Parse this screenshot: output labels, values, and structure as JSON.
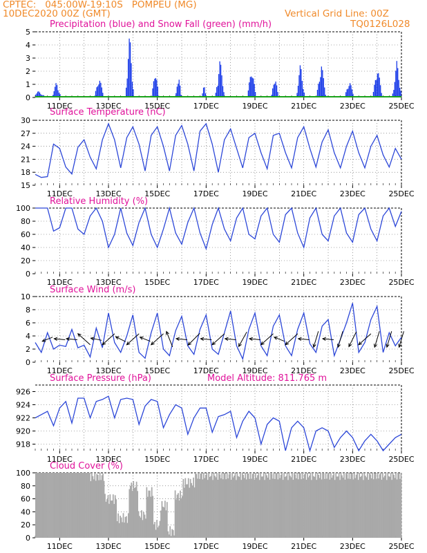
{
  "header": {
    "line1": "CPTEC:   045:00W-19:10S   POMPEU (MG)",
    "line2": "10DEC2020 00Z (GMT)",
    "grid_note": "Vertical Grid Line: 00Z",
    "code": "TQ0126L028"
  },
  "panels": {
    "precip_title": "Precipitation (blue) and Snow Fall (green) (mm/h)",
    "temp_title": "Surface Temperature (nC)",
    "rh_title": "Relative Humidity (%)",
    "wind_title": "Surface Wind (m/s)",
    "pressure_title": "Surface Pressure (hPa)",
    "altitude_label": "Model Altitude: 811.765 m",
    "cloud_title": "Cloud Cover (%)"
  },
  "colors": {
    "header": "#f08a2a",
    "title": "#e0129a",
    "line": "#2b46d8",
    "bar": "#1537e8",
    "snow": "#19a319",
    "cloud": "#a9a9a9"
  },
  "chart_data": [
    {
      "type": "bar",
      "title": "Precipitation (blue) and Snow Fall (green) (mm/h)",
      "x_ticks": [
        "11DEC",
        "13DEC",
        "15DEC",
        "17DEC",
        "19DEC",
        "21DEC",
        "23DEC",
        "25DEC"
      ],
      "xlim_days": [
        10,
        25
      ],
      "ylim": [
        0,
        5
      ],
      "y_ticks": [
        0,
        1,
        2,
        3,
        4,
        5
      ],
      "precip_events": [
        {
          "day": 10.1,
          "peak": 0.5,
          "width": 0.35
        },
        {
          "day": 10.85,
          "peak": 1.2,
          "width": 0.2
        },
        {
          "day": 12.6,
          "peak": 1.7,
          "width": 0.2
        },
        {
          "day": 13.85,
          "peak": 5.0,
          "width": 0.18
        },
        {
          "day": 14.9,
          "peak": 2.5,
          "width": 0.15
        },
        {
          "day": 15.85,
          "peak": 2.1,
          "width": 0.12
        },
        {
          "day": 16.9,
          "peak": 1.0,
          "width": 0.1
        },
        {
          "day": 17.55,
          "peak": 3.0,
          "width": 0.2
        },
        {
          "day": 18.85,
          "peak": 2.6,
          "width": 0.18
        },
        {
          "day": 19.8,
          "peak": 1.9,
          "width": 0.15
        },
        {
          "day": 20.85,
          "peak": 2.7,
          "width": 0.18
        },
        {
          "day": 21.7,
          "peak": 2.8,
          "width": 0.2
        },
        {
          "day": 22.85,
          "peak": 1.4,
          "width": 0.2
        },
        {
          "day": 24.0,
          "peak": 2.6,
          "width": 0.2
        },
        {
          "day": 24.8,
          "peak": 2.9,
          "width": 0.2
        }
      ],
      "snow": 0
    },
    {
      "type": "line",
      "title": "Surface Temperature (nC)",
      "ylim": [
        15,
        30
      ],
      "y_ticks": [
        15,
        18,
        21,
        24,
        27,
        30
      ],
      "x_days": [
        10.0,
        10.25,
        10.5,
        10.75,
        11.0,
        11.25,
        11.5,
        11.75,
        12.0,
        12.25,
        12.5,
        12.75,
        13.0,
        13.25,
        13.5,
        13.75,
        14.0,
        14.25,
        14.5,
        14.75,
        15.0,
        15.25,
        15.5,
        15.75,
        16.0,
        16.25,
        16.5,
        16.75,
        17.0,
        17.25,
        17.5,
        17.75,
        18.0,
        18.25,
        18.5,
        18.75,
        19.0,
        19.25,
        19.5,
        19.75,
        20.0,
        20.25,
        20.5,
        20.75,
        21.0,
        21.25,
        21.5,
        21.75,
        22.0,
        22.25,
        22.5,
        22.75,
        23.0,
        23.25,
        23.5,
        23.75,
        24.0,
        24.25,
        24.5,
        24.75,
        25.0
      ],
      "values": [
        17.5,
        16.8,
        17.0,
        24.5,
        23.5,
        19.2,
        17.6,
        23.8,
        25.5,
        21.5,
        18.8,
        25.5,
        29.2,
        25.5,
        19.0,
        26.0,
        28.5,
        24.5,
        18.3,
        26.5,
        28.5,
        24.0,
        18.3,
        26.5,
        28.8,
        24.5,
        18.3,
        27.5,
        29.2,
        24.5,
        18.0,
        25.5,
        28.0,
        23.5,
        19.0,
        26.0,
        27.0,
        22.5,
        18.8,
        26.5,
        27.0,
        22.5,
        19.0,
        26.0,
        28.5,
        23.5,
        19.2,
        25.0,
        27.8,
        22.5,
        19.0,
        24.0,
        27.5,
        22.5,
        19.0,
        24.0,
        26.5,
        22.0,
        19.2,
        23.5,
        21.0
      ]
    },
    {
      "type": "line",
      "title": "Relative Humidity (%)",
      "ylim": [
        0,
        100
      ],
      "y_ticks": [
        0,
        20,
        40,
        60,
        80,
        100
      ],
      "x_days": [
        10.0,
        10.25,
        10.5,
        10.75,
        11.0,
        11.25,
        11.5,
        11.75,
        12.0,
        12.25,
        12.5,
        12.75,
        13.0,
        13.25,
        13.5,
        13.75,
        14.0,
        14.25,
        14.5,
        14.75,
        15.0,
        15.25,
        15.5,
        15.75,
        16.0,
        16.25,
        16.5,
        16.75,
        17.0,
        17.25,
        17.5,
        17.75,
        18.0,
        18.25,
        18.5,
        18.75,
        19.0,
        19.25,
        19.5,
        19.75,
        20.0,
        20.25,
        20.5,
        20.75,
        21.0,
        21.25,
        21.5,
        21.75,
        22.0,
        22.25,
        22.5,
        22.75,
        23.0,
        23.25,
        23.5,
        23.75,
        24.0,
        24.25,
        24.5,
        24.75,
        25.0
      ],
      "values": [
        100,
        100,
        100,
        65,
        70,
        100,
        100,
        68,
        60,
        88,
        100,
        80,
        40,
        60,
        100,
        62,
        43,
        78,
        100,
        60,
        40,
        68,
        100,
        62,
        45,
        78,
        100,
        62,
        38,
        75,
        100,
        68,
        50,
        85,
        100,
        60,
        53,
        88,
        100,
        60,
        48,
        90,
        100,
        62,
        40,
        85,
        100,
        60,
        50,
        88,
        100,
        62,
        48,
        90,
        100,
        68,
        50,
        88,
        100,
        72,
        95
      ]
    },
    {
      "type": "line",
      "title": "Surface Wind (m/s)",
      "ylim": [
        0,
        10
      ],
      "y_ticks": [
        0,
        2,
        4,
        6,
        8,
        10
      ],
      "x_days": [
        10.0,
        10.25,
        10.5,
        10.75,
        11.0,
        11.25,
        11.5,
        11.75,
        12.0,
        12.25,
        12.5,
        12.75,
        13.0,
        13.25,
        13.5,
        13.75,
        14.0,
        14.25,
        14.5,
        14.75,
        15.0,
        15.25,
        15.5,
        15.75,
        16.0,
        16.25,
        16.5,
        16.75,
        17.0,
        17.25,
        17.5,
        17.75,
        18.0,
        18.25,
        18.5,
        18.75,
        19.0,
        19.25,
        19.5,
        19.75,
        20.0,
        20.25,
        20.5,
        20.75,
        21.0,
        21.25,
        21.5,
        21.75,
        22.0,
        22.25,
        22.5,
        22.75,
        23.0,
        23.25,
        23.5,
        23.75,
        24.0,
        24.25,
        24.5,
        24.75,
        25.0
      ],
      "values": [
        3.0,
        1.5,
        4.5,
        2.0,
        2.6,
        2.4,
        5.0,
        2.2,
        2.6,
        0.8,
        5.2,
        2.2,
        7.5,
        3.0,
        1.5,
        4.0,
        7.2,
        1.5,
        0.6,
        4.5,
        7.5,
        2.0,
        1.0,
        4.8,
        7.0,
        2.5,
        1.2,
        5.0,
        7.2,
        2.0,
        1.2,
        4.5,
        7.8,
        2.5,
        0.5,
        5.0,
        7.5,
        2.5,
        1.0,
        5.5,
        7.2,
        2.5,
        1.0,
        5.0,
        7.5,
        2.8,
        1.5,
        5.5,
        6.5,
        1.0,
        3.5,
        6.0,
        9.0,
        1.5,
        3.0,
        6.5,
        8.5,
        1.5,
        4.5,
        2.5,
        3.8
      ],
      "arrows": [
        {
          "day": 10.5,
          "u": -1.0,
          "v": -0.4
        },
        {
          "day": 11.0,
          "u": -1.0,
          "v": 0.1
        },
        {
          "day": 11.5,
          "u": -1.0,
          "v": 0.1
        },
        {
          "day": 12.0,
          "u": -1.0,
          "v": 0.9
        },
        {
          "day": 12.5,
          "u": -1.0,
          "v": 0.2
        },
        {
          "day": 13.0,
          "u": -1.0,
          "v": -0.9
        },
        {
          "day": 13.5,
          "u": -1.0,
          "v": 0.5
        },
        {
          "day": 14.0,
          "u": -1.0,
          "v": -0.9
        },
        {
          "day": 14.5,
          "u": -1.0,
          "v": 0.4
        },
        {
          "day": 15.0,
          "u": -1.0,
          "v": -0.9
        },
        {
          "day": 15.5,
          "u": -0.4,
          "v": 1.0
        },
        {
          "day": 16.0,
          "u": -1.0,
          "v": 0.1
        },
        {
          "day": 16.5,
          "u": -1.0,
          "v": -1.0
        },
        {
          "day": 17.0,
          "u": -1.0,
          "v": 0.1
        },
        {
          "day": 17.5,
          "u": -1.0,
          "v": -0.9
        },
        {
          "day": 18.0,
          "u": -1.0,
          "v": 0.1
        },
        {
          "day": 18.5,
          "u": -0.5,
          "v": -0.9
        },
        {
          "day": 19.0,
          "u": -1.0,
          "v": 0.1
        },
        {
          "day": 19.5,
          "u": -1.0,
          "v": -0.9
        },
        {
          "day": 20.0,
          "u": -1.0,
          "v": 0.4
        },
        {
          "day": 20.5,
          "u": -1.0,
          "v": -0.9
        },
        {
          "day": 21.0,
          "u": -1.0,
          "v": 0.1
        },
        {
          "day": 21.5,
          "u": -0.3,
          "v": -1.0
        },
        {
          "day": 22.0,
          "u": -1.0,
          "v": 0.1
        },
        {
          "day": 22.5,
          "u": -0.3,
          "v": -1.0
        },
        {
          "day": 23.0,
          "u": -0.5,
          "v": -1.0
        },
        {
          "day": 23.5,
          "u": -1.0,
          "v": -0.9
        },
        {
          "day": 24.0,
          "u": -0.3,
          "v": -1.0
        },
        {
          "day": 24.5,
          "u": -0.3,
          "v": -1.0
        },
        {
          "day": 25.0,
          "u": -0.3,
          "v": -1.0
        }
      ]
    },
    {
      "type": "line",
      "title": "Surface Pressure (hPa)",
      "ylim": [
        917,
        927
      ],
      "y_ticks": [
        918,
        920,
        922,
        924,
        926
      ],
      "x_days": [
        10.0,
        10.25,
        10.5,
        10.75,
        11.0,
        11.25,
        11.5,
        11.75,
        12.0,
        12.25,
        12.5,
        12.75,
        13.0,
        13.25,
        13.5,
        13.75,
        14.0,
        14.25,
        14.5,
        14.75,
        15.0,
        15.25,
        15.5,
        15.75,
        16.0,
        16.25,
        16.5,
        16.75,
        17.0,
        17.25,
        17.5,
        17.75,
        18.0,
        18.25,
        18.5,
        18.75,
        19.0,
        19.25,
        19.5,
        19.75,
        20.0,
        20.25,
        20.5,
        20.75,
        21.0,
        21.25,
        21.5,
        21.75,
        22.0,
        22.25,
        22.5,
        22.75,
        23.0,
        23.25,
        23.5,
        23.75,
        24.0,
        24.25,
        24.5,
        24.75,
        25.0
      ],
      "values": [
        922.0,
        922.5,
        923.0,
        920.8,
        923.5,
        924.5,
        921.2,
        925.0,
        925.0,
        922.0,
        924.5,
        924.8,
        925.3,
        922.0,
        924.8,
        925.0,
        924.8,
        921.0,
        923.8,
        924.8,
        924.5,
        920.5,
        922.5,
        924.0,
        923.5,
        919.5,
        922.0,
        923.5,
        923.5,
        919.8,
        922.2,
        922.5,
        923.0,
        919.0,
        921.5,
        923.0,
        922.0,
        918.0,
        921.0,
        922.0,
        921.5,
        917.0,
        920.5,
        921.5,
        920.5,
        917.0,
        920.0,
        920.5,
        920.0,
        917.5,
        919.0,
        920.0,
        919.0,
        917.0,
        918.5,
        919.5,
        918.5,
        917.0,
        918.0,
        919.0,
        919.5
      ]
    },
    {
      "type": "bar",
      "title": "Cloud Cover (%)",
      "ylim": [
        0,
        100
      ],
      "y_ticks": [
        0,
        20,
        40,
        60,
        80,
        100
      ],
      "cloud_segments": [
        {
          "from": 10.0,
          "to": 12.2,
          "value": 100
        },
        {
          "from": 12.2,
          "to": 12.8,
          "value": 95
        },
        {
          "from": 12.8,
          "to": 13.3,
          "value": 60
        },
        {
          "from": 13.3,
          "to": 13.8,
          "value": 30
        },
        {
          "from": 13.8,
          "to": 14.2,
          "value": 80
        },
        {
          "from": 14.2,
          "to": 14.5,
          "value": 35
        },
        {
          "from": 14.5,
          "to": 14.8,
          "value": 70
        },
        {
          "from": 14.8,
          "to": 15.1,
          "value": 20
        },
        {
          "from": 15.1,
          "to": 15.4,
          "value": 50
        },
        {
          "from": 15.4,
          "to": 15.7,
          "value": 10
        },
        {
          "from": 15.7,
          "to": 16.0,
          "value": 65
        },
        {
          "from": 16.0,
          "to": 16.5,
          "value": 85
        },
        {
          "from": 16.5,
          "to": 25.0,
          "value": 97
        }
      ]
    }
  ]
}
